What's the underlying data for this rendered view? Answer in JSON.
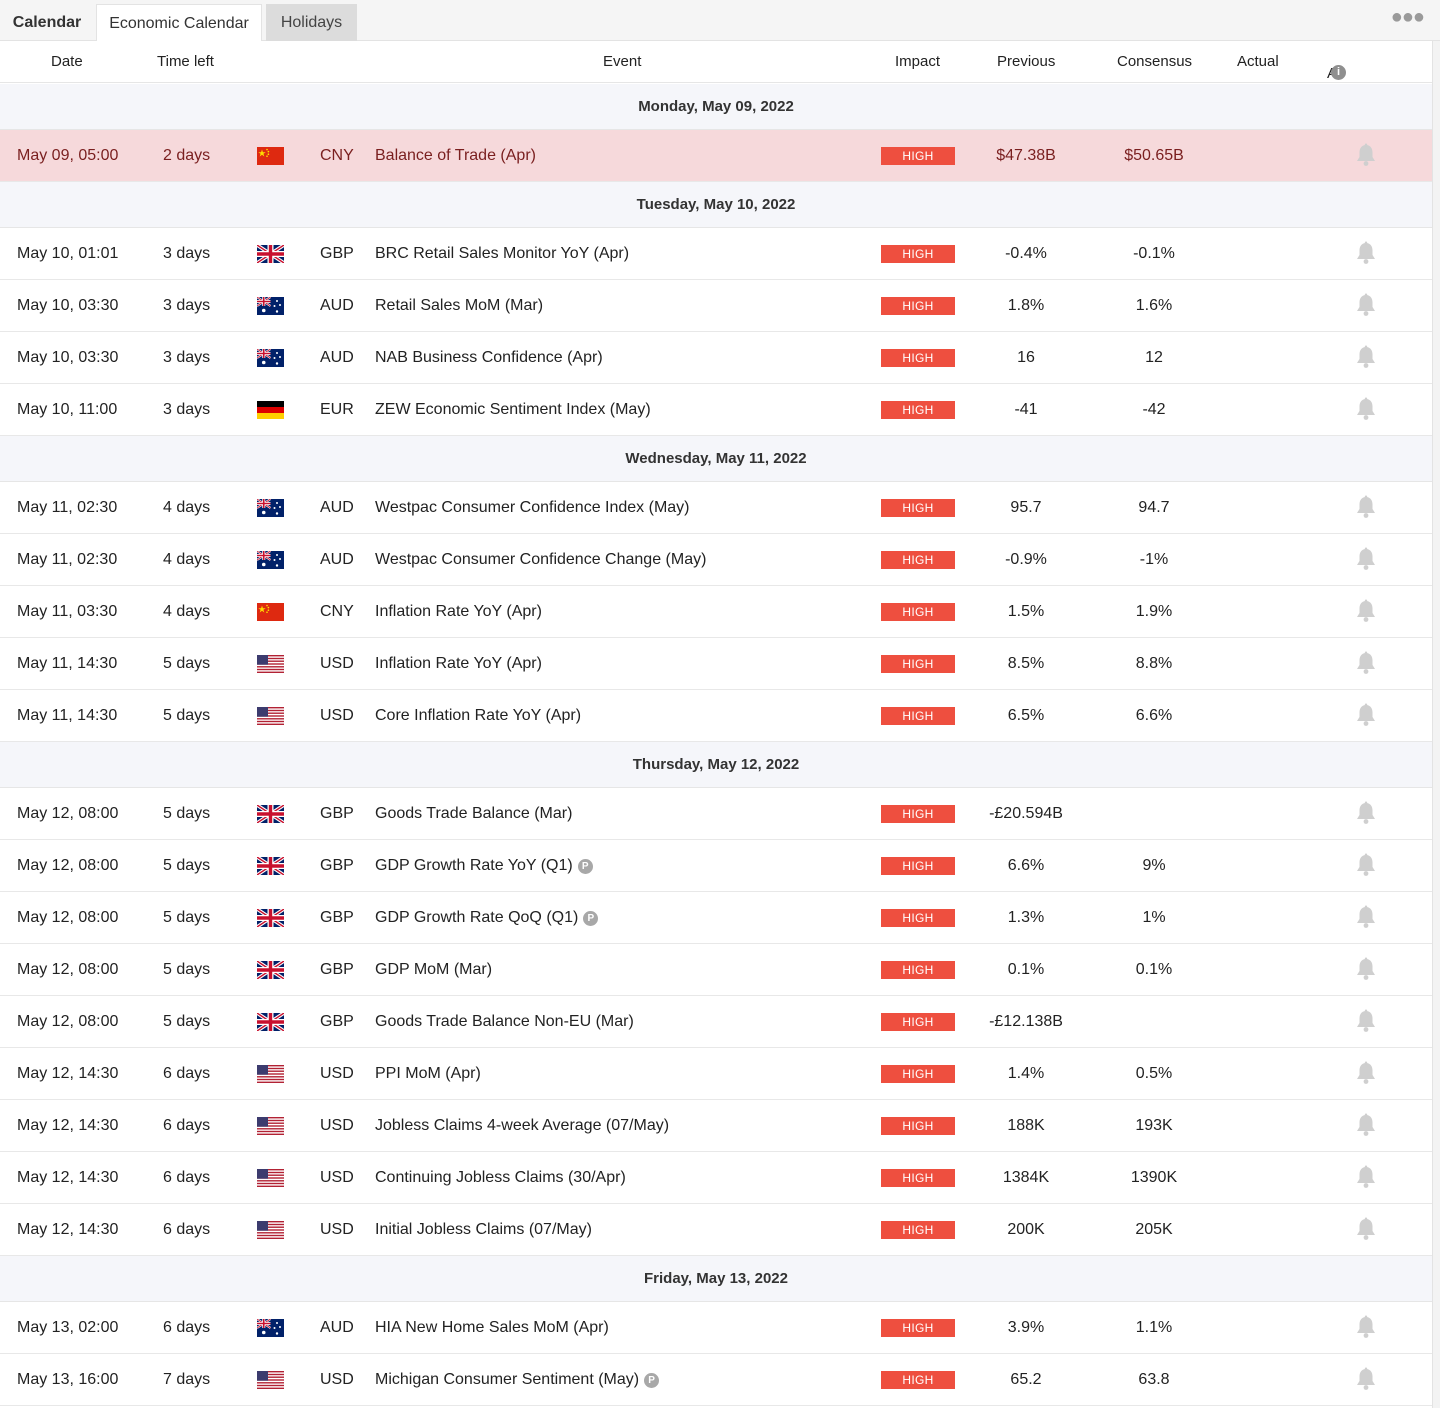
{
  "tabs": {
    "calendar": "Calendar",
    "economic": "Economic Calendar",
    "holidays": "Holidays"
  },
  "more_icon": "more-dots-icon",
  "columns": {
    "date": "Date",
    "time_left": "Time left",
    "event": "Event",
    "impact": "Impact",
    "previous": "Previous",
    "consensus": "Consensus",
    "actual": "Actual",
    "all_none": "All None"
  },
  "impact_color": "#ee4f3f",
  "highlight_color": "#f6d9db",
  "days": [
    {
      "label": "Monday, May 09, 2022",
      "events": [
        {
          "date": "May 09, 05:00",
          "time_left": "2 days",
          "flag": "cn",
          "currency": "CNY",
          "event": "Balance of Trade (Apr)",
          "impact": "HIGH",
          "previous": "$47.38B",
          "consensus": "$50.65B",
          "actual": "",
          "highlight": true
        }
      ]
    },
    {
      "label": "Tuesday, May 10, 2022",
      "events": [
        {
          "date": "May 10, 01:01",
          "time_left": "3 days",
          "flag": "gb",
          "currency": "GBP",
          "event": "BRC Retail Sales Monitor YoY (Apr)",
          "impact": "HIGH",
          "previous": "-0.4%",
          "consensus": "-0.1%",
          "actual": ""
        },
        {
          "date": "May 10, 03:30",
          "time_left": "3 days",
          "flag": "au",
          "currency": "AUD",
          "event": "Retail Sales MoM (Mar)",
          "impact": "HIGH",
          "previous": "1.8%",
          "consensus": "1.6%",
          "actual": ""
        },
        {
          "date": "May 10, 03:30",
          "time_left": "3 days",
          "flag": "au",
          "currency": "AUD",
          "event": "NAB Business Confidence (Apr)",
          "impact": "HIGH",
          "previous": "16",
          "consensus": "12",
          "actual": ""
        },
        {
          "date": "May 10, 11:00",
          "time_left": "3 days",
          "flag": "de",
          "currency": "EUR",
          "event": "ZEW Economic Sentiment Index (May)",
          "impact": "HIGH",
          "previous": "-41",
          "consensus": "-42",
          "actual": ""
        }
      ]
    },
    {
      "label": "Wednesday, May 11, 2022",
      "events": [
        {
          "date": "May 11, 02:30",
          "time_left": "4 days",
          "flag": "au",
          "currency": "AUD",
          "event": "Westpac Consumer Confidence Index (May)",
          "impact": "HIGH",
          "previous": "95.7",
          "consensus": "94.7",
          "actual": ""
        },
        {
          "date": "May 11, 02:30",
          "time_left": "4 days",
          "flag": "au",
          "currency": "AUD",
          "event": "Westpac Consumer Confidence Change (May)",
          "impact": "HIGH",
          "previous": "-0.9%",
          "consensus": "-1%",
          "actual": ""
        },
        {
          "date": "May 11, 03:30",
          "time_left": "4 days",
          "flag": "cn",
          "currency": "CNY",
          "event": "Inflation Rate YoY (Apr)",
          "impact": "HIGH",
          "previous": "1.5%",
          "consensus": "1.9%",
          "actual": ""
        },
        {
          "date": "May 11, 14:30",
          "time_left": "5 days",
          "flag": "us",
          "currency": "USD",
          "event": "Inflation Rate YoY (Apr)",
          "impact": "HIGH",
          "previous": "8.5%",
          "consensus": "8.8%",
          "actual": ""
        },
        {
          "date": "May 11, 14:30",
          "time_left": "5 days",
          "flag": "us",
          "currency": "USD",
          "event": "Core Inflation Rate YoY (Apr)",
          "impact": "HIGH",
          "previous": "6.5%",
          "consensus": "6.6%",
          "actual": ""
        }
      ]
    },
    {
      "label": "Thursday, May 12, 2022",
      "events": [
        {
          "date": "May 12, 08:00",
          "time_left": "5 days",
          "flag": "gb",
          "currency": "GBP",
          "event": "Goods Trade Balance (Mar)",
          "impact": "HIGH",
          "previous": "-£20.594B",
          "consensus": "",
          "actual": ""
        },
        {
          "date": "May 12, 08:00",
          "time_left": "5 days",
          "flag": "gb",
          "currency": "GBP",
          "event": "GDP Growth Rate YoY (Q1)",
          "impact": "HIGH",
          "previous": "6.6%",
          "consensus": "9%",
          "actual": "",
          "preliminary": "P"
        },
        {
          "date": "May 12, 08:00",
          "time_left": "5 days",
          "flag": "gb",
          "currency": "GBP",
          "event": "GDP Growth Rate QoQ (Q1)",
          "impact": "HIGH",
          "previous": "1.3%",
          "consensus": "1%",
          "actual": "",
          "preliminary": "P"
        },
        {
          "date": "May 12, 08:00",
          "time_left": "5 days",
          "flag": "gb",
          "currency": "GBP",
          "event": "GDP MoM (Mar)",
          "impact": "HIGH",
          "previous": "0.1%",
          "consensus": "0.1%",
          "actual": ""
        },
        {
          "date": "May 12, 08:00",
          "time_left": "5 days",
          "flag": "gb",
          "currency": "GBP",
          "event": "Goods Trade Balance Non-EU (Mar)",
          "impact": "HIGH",
          "previous": "-£12.138B",
          "consensus": "",
          "actual": ""
        },
        {
          "date": "May 12, 14:30",
          "time_left": "6 days",
          "flag": "us",
          "currency": "USD",
          "event": "PPI MoM (Apr)",
          "impact": "HIGH",
          "previous": "1.4%",
          "consensus": "0.5%",
          "actual": ""
        },
        {
          "date": "May 12, 14:30",
          "time_left": "6 days",
          "flag": "us",
          "currency": "USD",
          "event": "Jobless Claims 4-week Average (07/May)",
          "impact": "HIGH",
          "previous": "188K",
          "consensus": "193K",
          "actual": ""
        },
        {
          "date": "May 12, 14:30",
          "time_left": "6 days",
          "flag": "us",
          "currency": "USD",
          "event": "Continuing Jobless Claims (30/Apr)",
          "impact": "HIGH",
          "previous": "1384K",
          "consensus": "1390K",
          "actual": ""
        },
        {
          "date": "May 12, 14:30",
          "time_left": "6 days",
          "flag": "us",
          "currency": "USD",
          "event": "Initial Jobless Claims (07/May)",
          "impact": "HIGH",
          "previous": "200K",
          "consensus": "205K",
          "actual": ""
        }
      ]
    },
    {
      "label": "Friday, May 13, 2022",
      "events": [
        {
          "date": "May 13, 02:00",
          "time_left": "6 days",
          "flag": "au",
          "currency": "AUD",
          "event": "HIA New Home Sales MoM (Apr)",
          "impact": "HIGH",
          "previous": "3.9%",
          "consensus": "1.1%",
          "actual": ""
        },
        {
          "date": "May 13, 16:00",
          "time_left": "7 days",
          "flag": "us",
          "currency": "USD",
          "event": "Michigan Consumer Sentiment (May)",
          "impact": "HIGH",
          "previous": "65.2",
          "consensus": "63.8",
          "actual": "",
          "preliminary": "P"
        }
      ]
    }
  ]
}
